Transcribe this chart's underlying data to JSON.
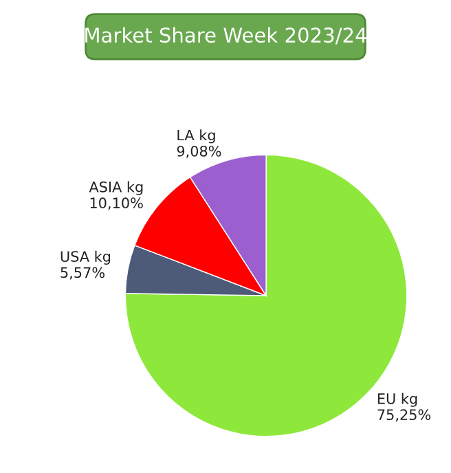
{
  "chart_data": {
    "type": "pie",
    "title": "Market Share Week 2023/24",
    "categories": [
      "EU kg",
      "USA kg",
      "ASIA kg",
      "LA kg"
    ],
    "values": [
      75.25,
      5.57,
      10.1,
      9.08
    ],
    "value_labels": [
      "75,25%",
      "5,57%",
      "10,10%",
      "9,08%"
    ],
    "colors": [
      "#8ee83c",
      "#4d5a78",
      "#ff0000",
      "#9b5fcf"
    ],
    "legend": false
  }
}
